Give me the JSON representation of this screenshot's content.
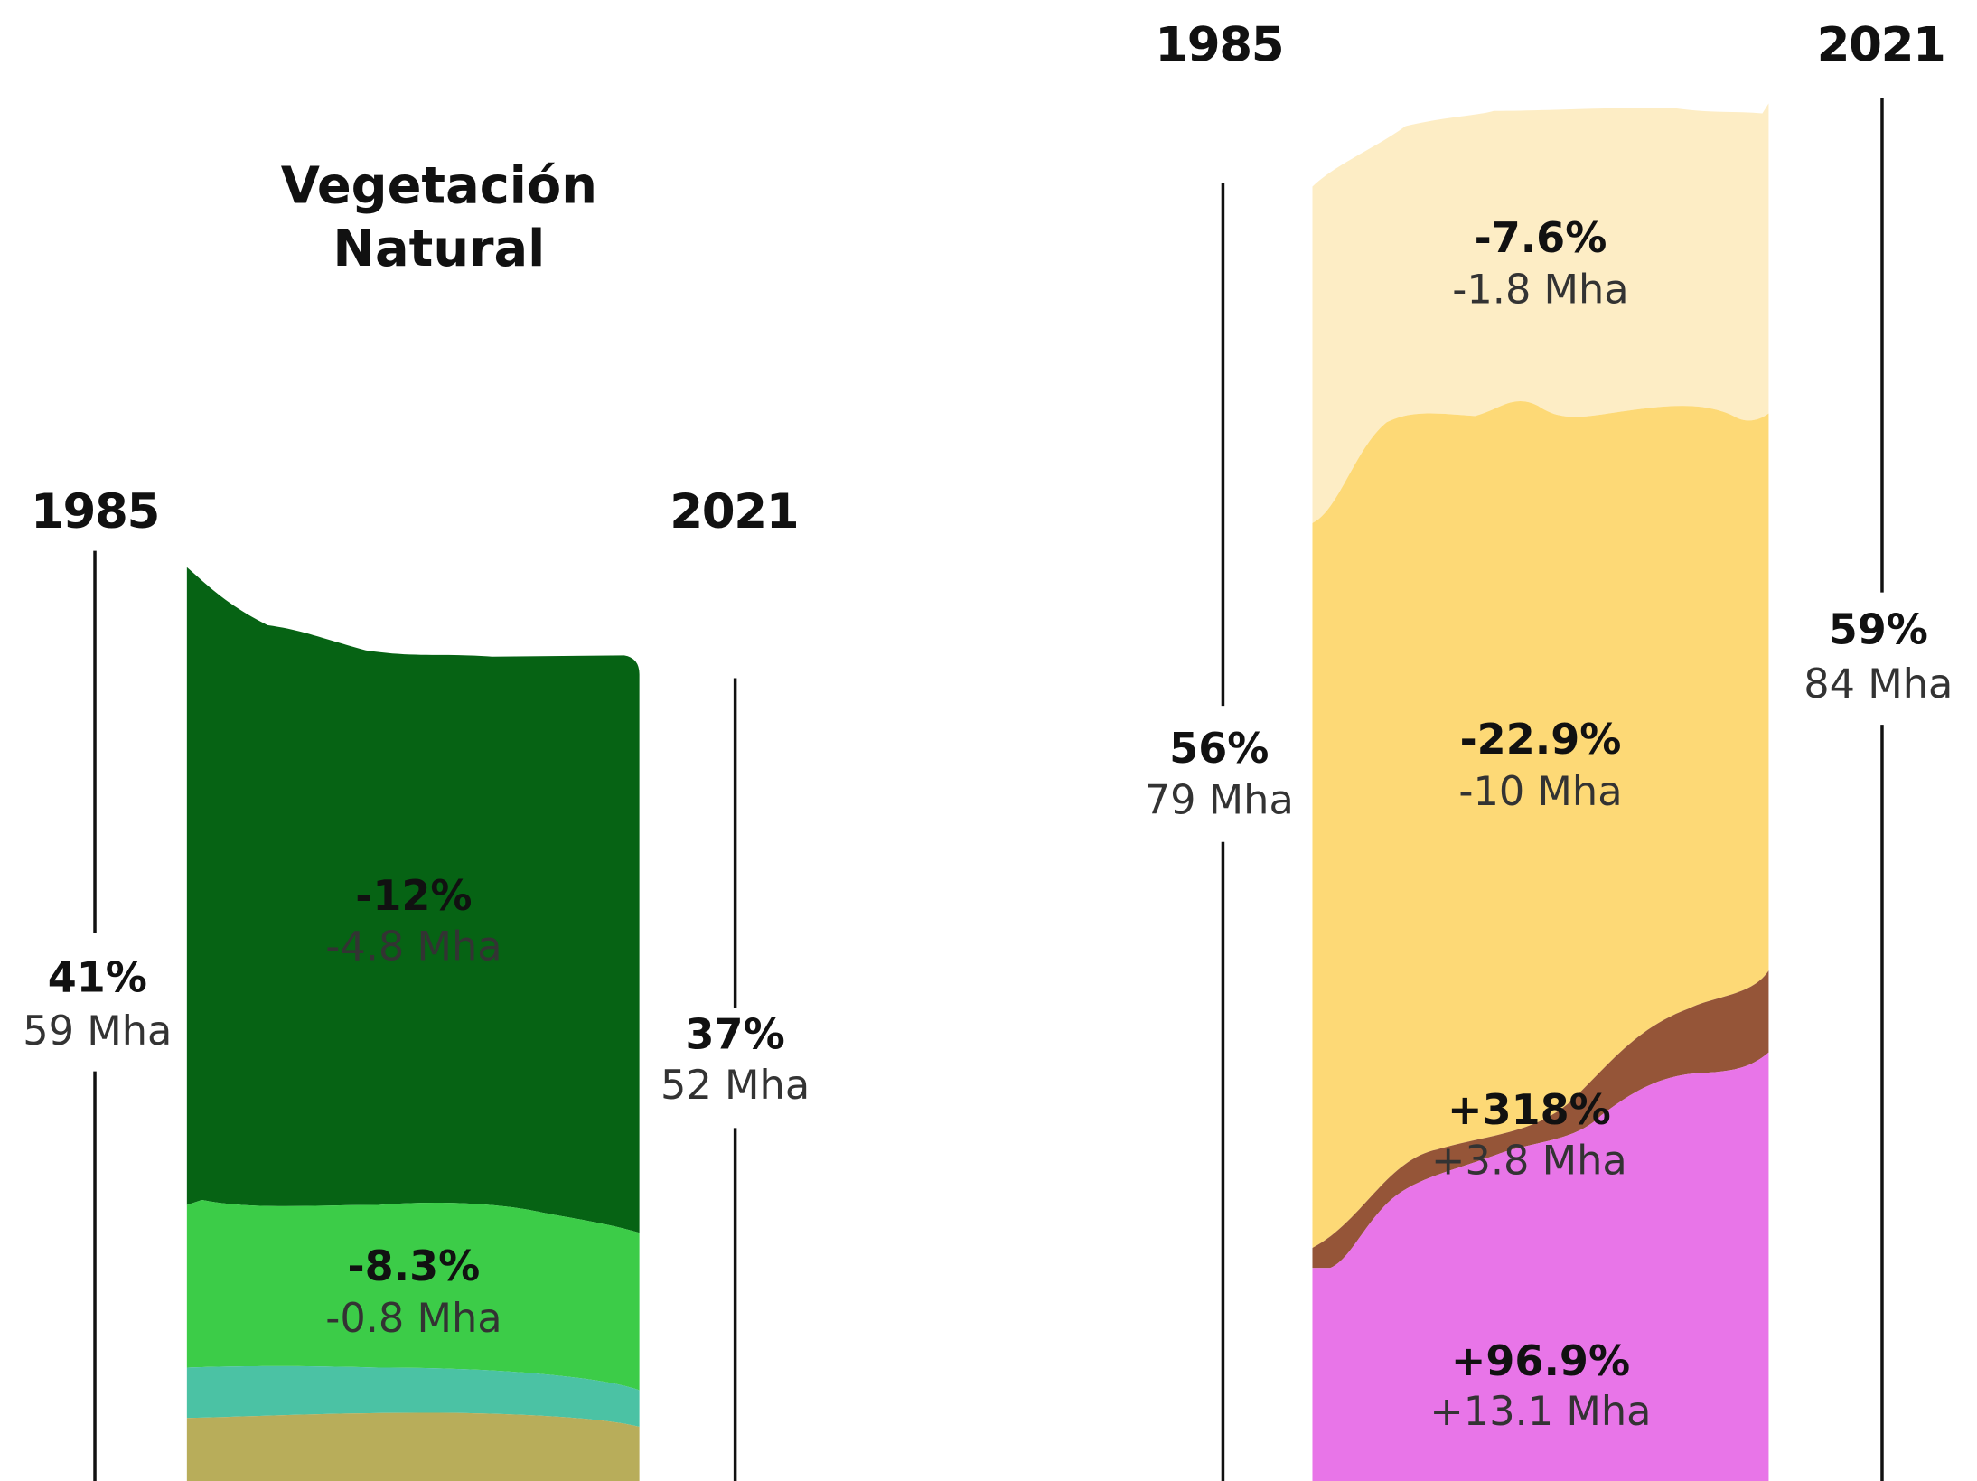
{
  "left": {
    "title": [
      "Vegetación",
      "Natural"
    ],
    "year_start": "1985",
    "year_end": "2021",
    "total_start": {
      "pct": "41%",
      "area": "59 Mha"
    },
    "total_end": {
      "pct": "37%",
      "area": "52 Mha"
    },
    "bands": [
      {
        "pct": "-12%",
        "area": "-4.8 Mha"
      },
      {
        "pct": "-8.3%",
        "area": "-0.8 Mha"
      }
    ]
  },
  "right": {
    "year_start": "1985",
    "year_end": "2021",
    "total_start": {
      "pct": "56%",
      "area": "79 Mha"
    },
    "total_end": {
      "pct": "59%",
      "area": "84 Mha"
    },
    "bands": [
      {
        "pct": "-7.6%",
        "area": "-1.8 Mha"
      },
      {
        "pct": "-22.9%",
        "area": "-10 Mha"
      },
      {
        "pct": "+318%",
        "area": "+3.8 Mha"
      },
      {
        "pct": "+96.9%",
        "area": "+13.1 Mha"
      }
    ]
  }
}
